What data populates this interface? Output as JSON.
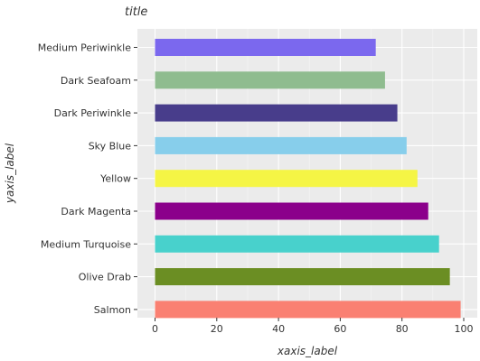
{
  "chart_data": {
    "type": "bar",
    "orientation": "horizontal",
    "title": "title",
    "xlabel": "xaxis_label",
    "ylabel": "yaxis_label",
    "xlim": [
      0,
      100
    ],
    "xticks": [
      0,
      20,
      40,
      60,
      80,
      100
    ],
    "grid": true,
    "categories": [
      "Medium Periwinkle",
      "Dark Seafoam",
      "Dark Periwinkle",
      "Sky Blue",
      "Yellow",
      "Dark Magenta",
      "Medium Turquoise",
      "Olive Drab",
      "Salmon"
    ],
    "values": [
      71.5,
      74.5,
      78.5,
      81.5,
      85,
      88.5,
      92,
      95.5,
      99
    ],
    "colors": [
      "#7b68ee",
      "#8fbc8f",
      "#483d8b",
      "#87ceeb",
      "#f5f545",
      "#8b008b",
      "#48d1cc",
      "#6b8e23",
      "#fa8072"
    ]
  }
}
